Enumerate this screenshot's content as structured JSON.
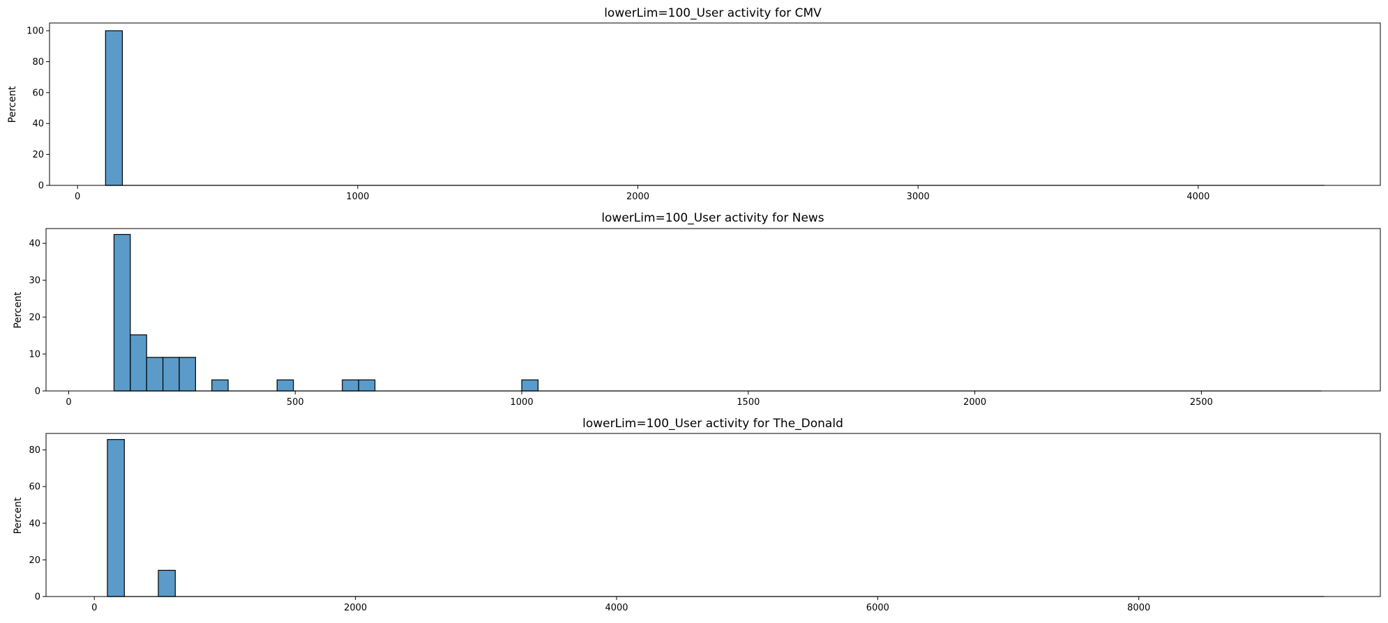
{
  "figure": {
    "background": "#ffffff",
    "bar_color": "#5a9bc9",
    "bar_edge_color": "#000000"
  },
  "chart_data": [
    {
      "type": "bar",
      "title": "lowerLim=100_User activity for CMV",
      "xlabel": "",
      "ylabel": "Percent",
      "xlim": [
        -100,
        4650
      ],
      "ylim": [
        0,
        105
      ],
      "xticks": [
        0,
        1000,
        2000,
        3000,
        4000
      ],
      "yticks": [
        0,
        20,
        40,
        60,
        80,
        100
      ],
      "baseline_end": 4450,
      "bins": [
        {
          "x0": 100,
          "x1": 160,
          "value": 100
        }
      ]
    },
    {
      "type": "bar",
      "title": "lowerLim=100_User activity for News",
      "xlabel": "",
      "ylabel": "Percent",
      "xlim": [
        -50,
        2895
      ],
      "ylim": [
        0,
        44
      ],
      "xticks": [
        0,
        500,
        1000,
        1500,
        2000,
        2500
      ],
      "yticks": [
        0,
        10,
        20,
        30,
        40
      ],
      "baseline_end": 2765,
      "bins": [
        {
          "x0": 100,
          "x1": 136,
          "value": 42.4
        },
        {
          "x0": 136,
          "x1": 172,
          "value": 15.2
        },
        {
          "x0": 172,
          "x1": 208,
          "value": 9.1
        },
        {
          "x0": 208,
          "x1": 244,
          "value": 9.1
        },
        {
          "x0": 244,
          "x1": 280,
          "value": 9.1
        },
        {
          "x0": 316,
          "x1": 352,
          "value": 3.0
        },
        {
          "x0": 460,
          "x1": 496,
          "value": 3.0
        },
        {
          "x0": 604,
          "x1": 640,
          "value": 3.0
        },
        {
          "x0": 640,
          "x1": 676,
          "value": 3.0
        },
        {
          "x0": 1000,
          "x1": 1036,
          "value": 3.0
        }
      ]
    },
    {
      "type": "bar",
      "title": "lowerLim=100_User activity for The_Donald",
      "xlabel": "",
      "ylabel": "Percent",
      "xlim": [
        -370,
        9850
      ],
      "ylim": [
        0,
        89
      ],
      "xticks": [
        0,
        2000,
        4000,
        6000,
        8000
      ],
      "yticks": [
        0,
        20,
        40,
        60,
        80
      ],
      "baseline_end": 9420,
      "bins": [
        {
          "x0": 100,
          "x1": 230,
          "value": 85.7
        },
        {
          "x0": 490,
          "x1": 620,
          "value": 14.3
        }
      ]
    }
  ]
}
